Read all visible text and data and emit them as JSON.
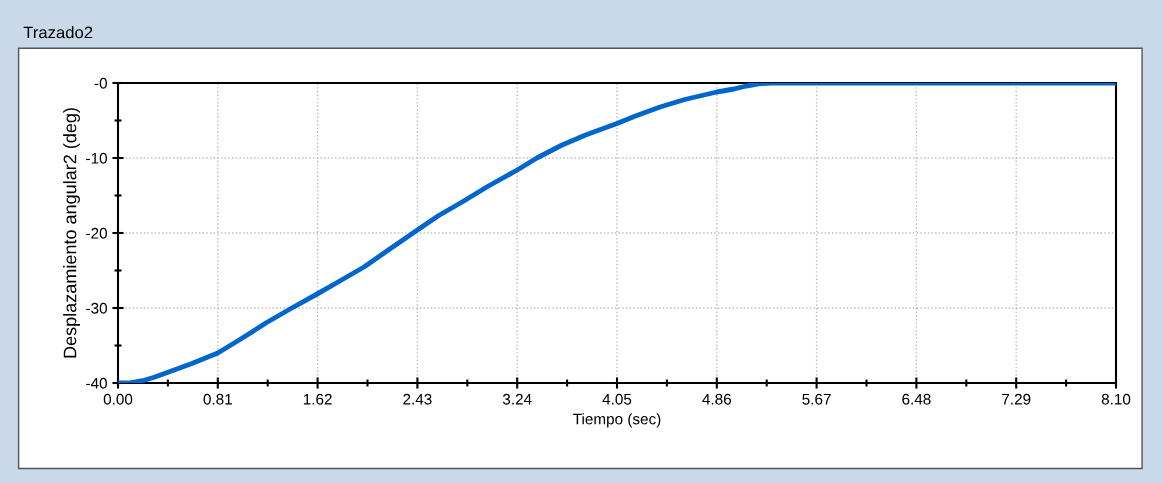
{
  "chart_data": {
    "type": "line",
    "title": "Trazado2",
    "xlabel": "Tiempo (sec)",
    "ylabel": "Desplazamiento angular2 (deg)",
    "x": [
      0,
      0.1,
      0.2,
      0.3,
      0.4,
      0.6,
      0.81,
      1.0,
      1.2,
      1.4,
      1.62,
      1.8,
      2.0,
      2.2,
      2.43,
      2.6,
      2.8,
      3.0,
      3.24,
      3.4,
      3.6,
      3.8,
      4.05,
      4.2,
      4.4,
      4.6,
      4.86,
      5.0,
      5.1,
      5.2,
      5.3,
      5.67,
      6.48,
      7.29,
      8.1
    ],
    "series": [
      {
        "color": "#0066cc",
        "values": [
          -40,
          -40,
          -39.7,
          -39.2,
          -38.6,
          -37.4,
          -36.0,
          -34.1,
          -32.0,
          -30.1,
          -28.1,
          -26.4,
          -24.5,
          -22.2,
          -19.6,
          -17.7,
          -15.8,
          -13.8,
          -11.6,
          -10.0,
          -8.3,
          -6.9,
          -5.4,
          -4.4,
          -3.2,
          -2.2,
          -1.2,
          -0.8,
          -0.4,
          -0.1,
          0,
          0,
          0,
          0,
          0
        ]
      }
    ],
    "xlim": [
      0,
      8.1
    ],
    "ylim": [
      -40,
      0
    ],
    "xticks": [
      {
        "value": 0,
        "label": "0.00"
      },
      0.81,
      1.62,
      2.43,
      3.24,
      4.05,
      4.86,
      5.67,
      6.48,
      7.29,
      {
        "value": 8.1,
        "label": "8.10"
      }
    ],
    "yticks": [
      {
        "value": -40,
        "label": "-40"
      },
      {
        "value": -30,
        "label": "-30"
      },
      {
        "value": -20,
        "label": "-20"
      },
      {
        "value": -10,
        "label": "-10"
      },
      {
        "value": 0,
        "label": "-0"
      }
    ],
    "grid": true,
    "line_style": "solid",
    "marker": "none"
  }
}
